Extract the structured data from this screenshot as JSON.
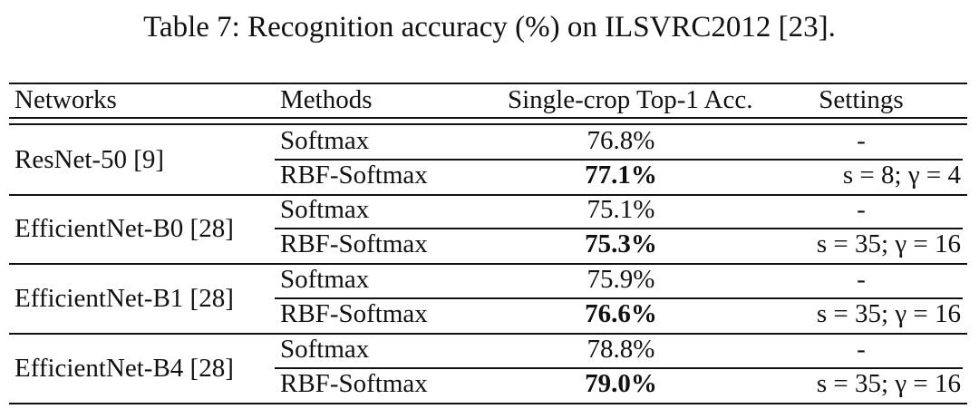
{
  "caption": "Table 7: Recognition accuracy (%) on ILSVRC2012 [23].",
  "headers": {
    "networks": "Networks",
    "methods": "Methods",
    "accuracy": "Single-crop Top-1 Acc.",
    "settings": "Settings"
  },
  "groups": [
    {
      "network": "ResNet-50 [9]",
      "rows": [
        {
          "method": "Softmax",
          "acc": "76.8%",
          "settings": "-",
          "bold": false
        },
        {
          "method": "RBF-Softmax",
          "acc": "77.1%",
          "settings": "s = 8; γ = 4",
          "bold": true
        }
      ]
    },
    {
      "network": "EfficientNet-B0 [28]",
      "rows": [
        {
          "method": "Softmax",
          "acc": "75.1%",
          "settings": "-",
          "bold": false
        },
        {
          "method": "RBF-Softmax",
          "acc": "75.3%",
          "settings": "s = 35; γ = 16",
          "bold": true
        }
      ]
    },
    {
      "network": "EfficientNet-B1 [28]",
      "rows": [
        {
          "method": "Softmax",
          "acc": "75.9%",
          "settings": "-",
          "bold": false
        },
        {
          "method": "RBF-Softmax",
          "acc": "76.6%",
          "settings": "s = 35; γ = 16",
          "bold": true
        }
      ]
    },
    {
      "network": "EfficientNet-B4 [28]",
      "rows": [
        {
          "method": "Softmax",
          "acc": "78.8%",
          "settings": "-",
          "bold": false
        },
        {
          "method": "RBF-Softmax",
          "acc": "79.0%",
          "settings": "s = 35; γ = 16",
          "bold": true
        }
      ]
    }
  ]
}
